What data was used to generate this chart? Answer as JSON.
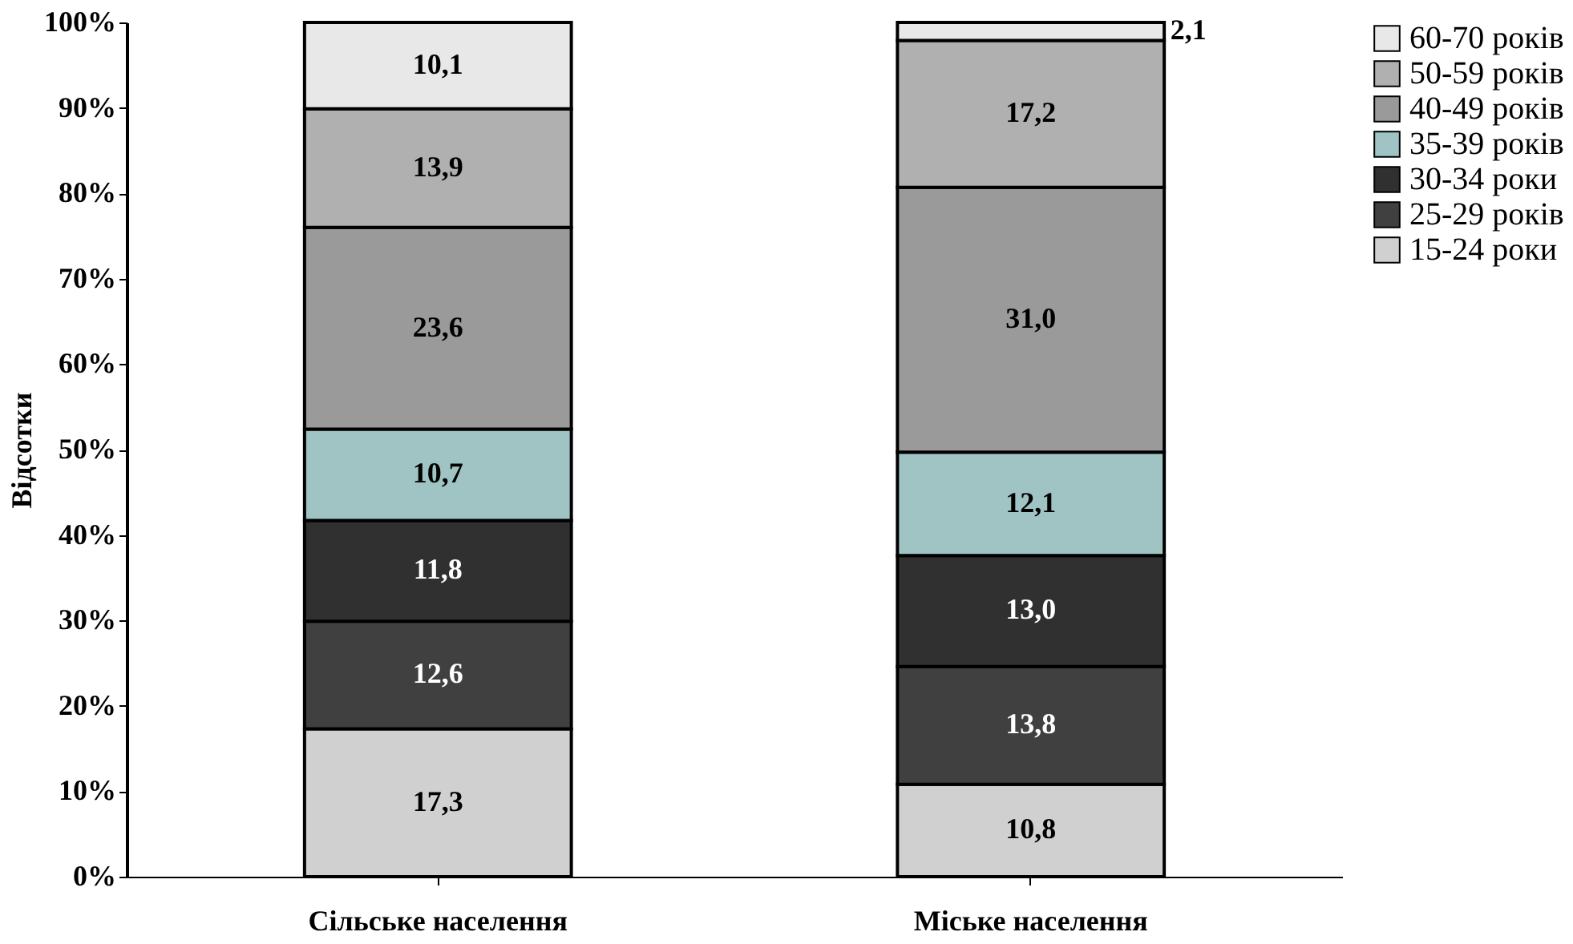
{
  "chart_data": {
    "type": "bar",
    "stacked": true,
    "ylabel": "Відсотки",
    "categories": [
      "Сільське населення",
      "Міське населення"
    ],
    "ylim": [
      0,
      100
    ],
    "yticks": [
      {
        "value": 0,
        "label": "0%"
      },
      {
        "value": 10,
        "label": "10%"
      },
      {
        "value": 20,
        "label": "20%"
      },
      {
        "value": 30,
        "label": "30%"
      },
      {
        "value": 40,
        "label": "40%"
      },
      {
        "value": 50,
        "label": "50%"
      },
      {
        "value": 60,
        "label": "60%"
      },
      {
        "value": 70,
        "label": "70%"
      },
      {
        "value": 80,
        "label": "80%"
      },
      {
        "value": 90,
        "label": "90%"
      },
      {
        "value": 100,
        "label": "100%"
      }
    ],
    "grid": false,
    "legend": "right",
    "series": [
      {
        "name": "15-24 роки",
        "color": "#d0d0d0",
        "values": [
          17.3,
          10.8
        ],
        "value_labels": [
          "17,3",
          "10,8"
        ]
      },
      {
        "name": "25-29 років",
        "color": "#404040",
        "values": [
          12.6,
          13.8
        ],
        "value_labels": [
          "12,6",
          "13,8"
        ]
      },
      {
        "name": "30-34 роки",
        "color": "#303030",
        "values": [
          11.8,
          13.0
        ],
        "value_labels": [
          "11,8",
          "13,0"
        ]
      },
      {
        "name": "35-39 років",
        "color": "#a0c4c4",
        "values": [
          10.7,
          12.1
        ],
        "value_labels": [
          "10,7",
          "12,1"
        ]
      },
      {
        "name": "40-49 років",
        "color": "#9a9a9a",
        "values": [
          23.6,
          31.0
        ],
        "value_labels": [
          "23,6",
          "31,0"
        ]
      },
      {
        "name": "50-59 років",
        "color": "#b0b0b0",
        "values": [
          13.9,
          17.2
        ],
        "value_labels": [
          "13,9",
          "17,2"
        ]
      },
      {
        "name": "60-70 років",
        "color": "#e8e8e8",
        "values": [
          10.1,
          2.1
        ],
        "value_labels": [
          "10,1",
          "2,1"
        ]
      }
    ]
  }
}
